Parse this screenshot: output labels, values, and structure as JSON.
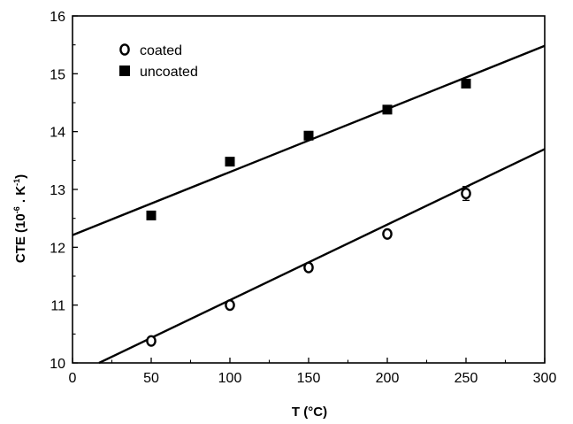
{
  "chart_data": {
    "type": "scatter",
    "title": "",
    "xlabel": "T (°C)",
    "ylabel": {
      "prefix": "CTE (10",
      "exp1": "-6",
      "middle": " . K",
      "exp2": "-1",
      "suffix": ")"
    },
    "xlim": [
      0,
      300
    ],
    "ylim": [
      10,
      16
    ],
    "x_ticks": [
      0,
      50,
      100,
      150,
      200,
      250,
      300
    ],
    "y_ticks": [
      10,
      11,
      12,
      13,
      14,
      15,
      16
    ],
    "grid": false,
    "legend_position": "top-left",
    "series": [
      {
        "name": "coated",
        "marker": "open-circle",
        "color": "#000000",
        "x": [
          50,
          100,
          150,
          200,
          250
        ],
        "y": [
          10.38,
          11.0,
          11.65,
          12.23,
          12.93
        ],
        "error": [
          0.04,
          0.04,
          0.04,
          0.04,
          0.12
        ],
        "fit": {
          "slope": 0.01306,
          "intercept": 9.78
        }
      },
      {
        "name": "uncoated",
        "marker": "filled-square",
        "color": "#000000",
        "x": [
          50,
          100,
          150,
          200,
          250
        ],
        "y": [
          12.55,
          13.48,
          13.93,
          14.38,
          14.83
        ],
        "error": [
          0,
          0,
          0,
          0,
          0
        ],
        "fit": {
          "slope": 0.01091,
          "intercept": 12.21
        }
      }
    ]
  }
}
